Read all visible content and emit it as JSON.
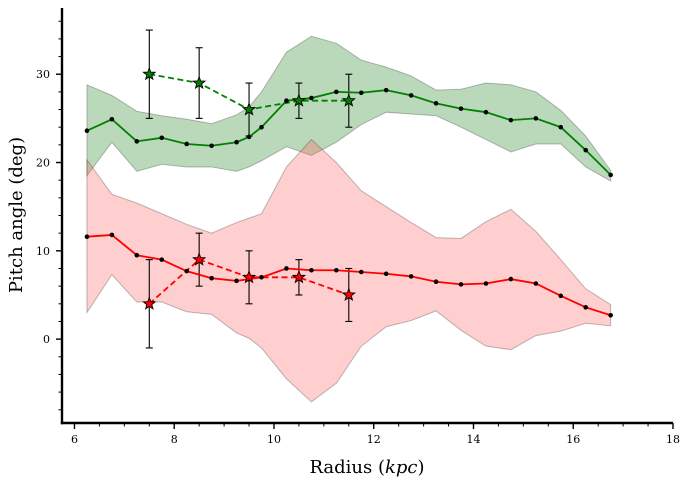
{
  "chart_data": {
    "type": "line",
    "xlabel": "Radius (",
    "xlabel_unit": "kpc",
    "xlabel_close": ")",
    "ylabel": "Pitch angle (deg)",
    "xlim": [
      5.75,
      18.0
    ],
    "ylim": [
      -9.5,
      37.5
    ],
    "x_ticks": [
      6,
      8,
      10,
      12,
      14,
      16,
      18
    ],
    "y_ticks": [
      0,
      10,
      20,
      30
    ],
    "x_tick_labels": [
      "6",
      "8",
      "10",
      "12",
      "14",
      "16",
      "18"
    ],
    "y_tick_labels": [
      "0",
      "10",
      "20",
      "30"
    ],
    "grid": false,
    "series": [
      {
        "style": "line-dots",
        "color": "#008000",
        "x": [
          6.25,
          6.75,
          7.25,
          7.75,
          8.25,
          8.75,
          9.25,
          9.5,
          9.75,
          10.25,
          10.75,
          11.25,
          11.75,
          12.25,
          12.75,
          13.25,
          13.75,
          14.25,
          14.75,
          15.25,
          15.75,
          16.25,
          16.75
        ],
        "y": [
          23.6,
          24.9,
          22.4,
          22.8,
          22.1,
          21.9,
          22.3,
          22.9,
          24.0,
          27.0,
          27.3,
          28.0,
          27.9,
          28.2,
          27.6,
          26.7,
          26.1,
          25.7,
          24.8,
          25.0,
          24.0,
          21.4,
          18.6
        ],
        "band_lower": [
          18.5,
          22.3,
          19.0,
          19.8,
          19.5,
          19.5,
          19.0,
          19.5,
          20.2,
          21.8,
          20.8,
          22.3,
          24.3,
          25.7,
          25.5,
          25.3,
          24.0,
          22.6,
          21.2,
          22.1,
          22.1,
          19.5,
          17.9
        ],
        "band_upper": [
          28.8,
          27.6,
          25.8,
          25.3,
          24.9,
          24.4,
          25.4,
          26.3,
          28.0,
          32.5,
          34.3,
          33.5,
          31.6,
          30.8,
          29.8,
          28.2,
          28.3,
          29.0,
          28.8,
          28.0,
          25.9,
          23.0,
          19.1
        ],
        "band_color": "#2e8b2e"
      },
      {
        "style": "line-dots",
        "color": "#ff0000",
        "x": [
          6.25,
          6.75,
          7.25,
          7.75,
          8.25,
          8.75,
          9.25,
          9.5,
          9.75,
          10.25,
          10.75,
          11.25,
          11.75,
          12.25,
          12.75,
          13.25,
          13.75,
          14.25,
          14.75,
          15.25,
          15.75,
          16.25,
          16.75
        ],
        "y": [
          11.6,
          11.8,
          9.5,
          9.0,
          7.7,
          6.9,
          6.6,
          6.8,
          7.0,
          8.0,
          7.8,
          7.8,
          7.6,
          7.4,
          7.1,
          6.5,
          6.2,
          6.3,
          6.8,
          6.3,
          4.9,
          3.6,
          2.7
        ],
        "band_lower": [
          3.0,
          7.3,
          4.2,
          4.2,
          3.1,
          2.8,
          0.7,
          0.1,
          -1.0,
          -4.5,
          -7.1,
          -5.0,
          -0.8,
          1.4,
          2.1,
          3.2,
          1.0,
          -0.8,
          -1.2,
          0.4,
          0.9,
          1.8,
          1.5
        ],
        "band_upper": [
          20.3,
          16.4,
          15.4,
          14.2,
          13.0,
          12.0,
          13.2,
          13.7,
          14.2,
          19.5,
          22.6,
          20.0,
          16.8,
          15.0,
          13.2,
          11.5,
          11.4,
          13.3,
          14.7,
          12.2,
          9.0,
          5.7,
          3.9
        ],
        "band_color": "#ff6b6b"
      },
      {
        "style": "dashed-stars",
        "color": "#008000",
        "x": [
          7.5,
          8.5,
          9.5,
          10.5,
          11.5
        ],
        "y": [
          30,
          29,
          26,
          27,
          27
        ],
        "yerr": [
          5,
          4,
          3,
          2,
          3
        ]
      },
      {
        "style": "dashed-stars",
        "color": "#ff0000",
        "x": [
          7.5,
          8.5,
          9.5,
          10.5,
          11.5
        ],
        "y": [
          4,
          9,
          7,
          7,
          5
        ],
        "yerr": [
          5,
          3,
          3,
          2,
          3
        ]
      }
    ]
  }
}
